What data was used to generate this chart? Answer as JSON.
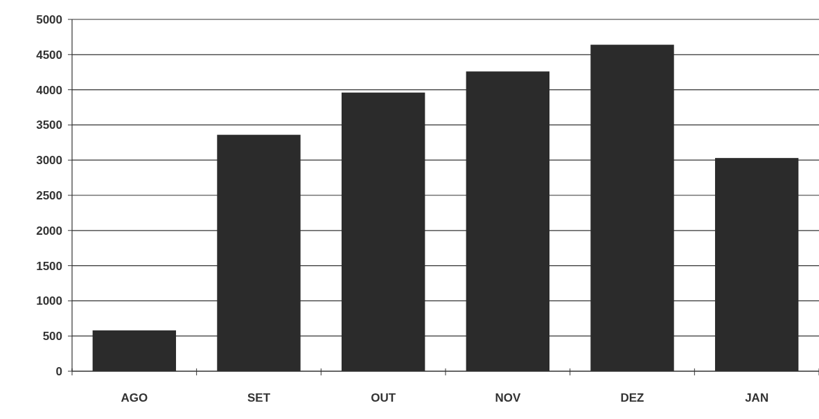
{
  "chart_data": {
    "type": "bar",
    "categories": [
      "AGO",
      "SET",
      "OUT",
      "NOV",
      "DEZ",
      "JAN"
    ],
    "values": [
      580,
      3360,
      3960,
      4260,
      4640,
      3030
    ],
    "color": "#2b2b2b",
    "ylim": [
      0,
      5000
    ],
    "yticks": [
      0,
      500,
      1000,
      1500,
      2000,
      2500,
      3000,
      3500,
      4000,
      4500,
      5000
    ],
    "grid": "y"
  }
}
